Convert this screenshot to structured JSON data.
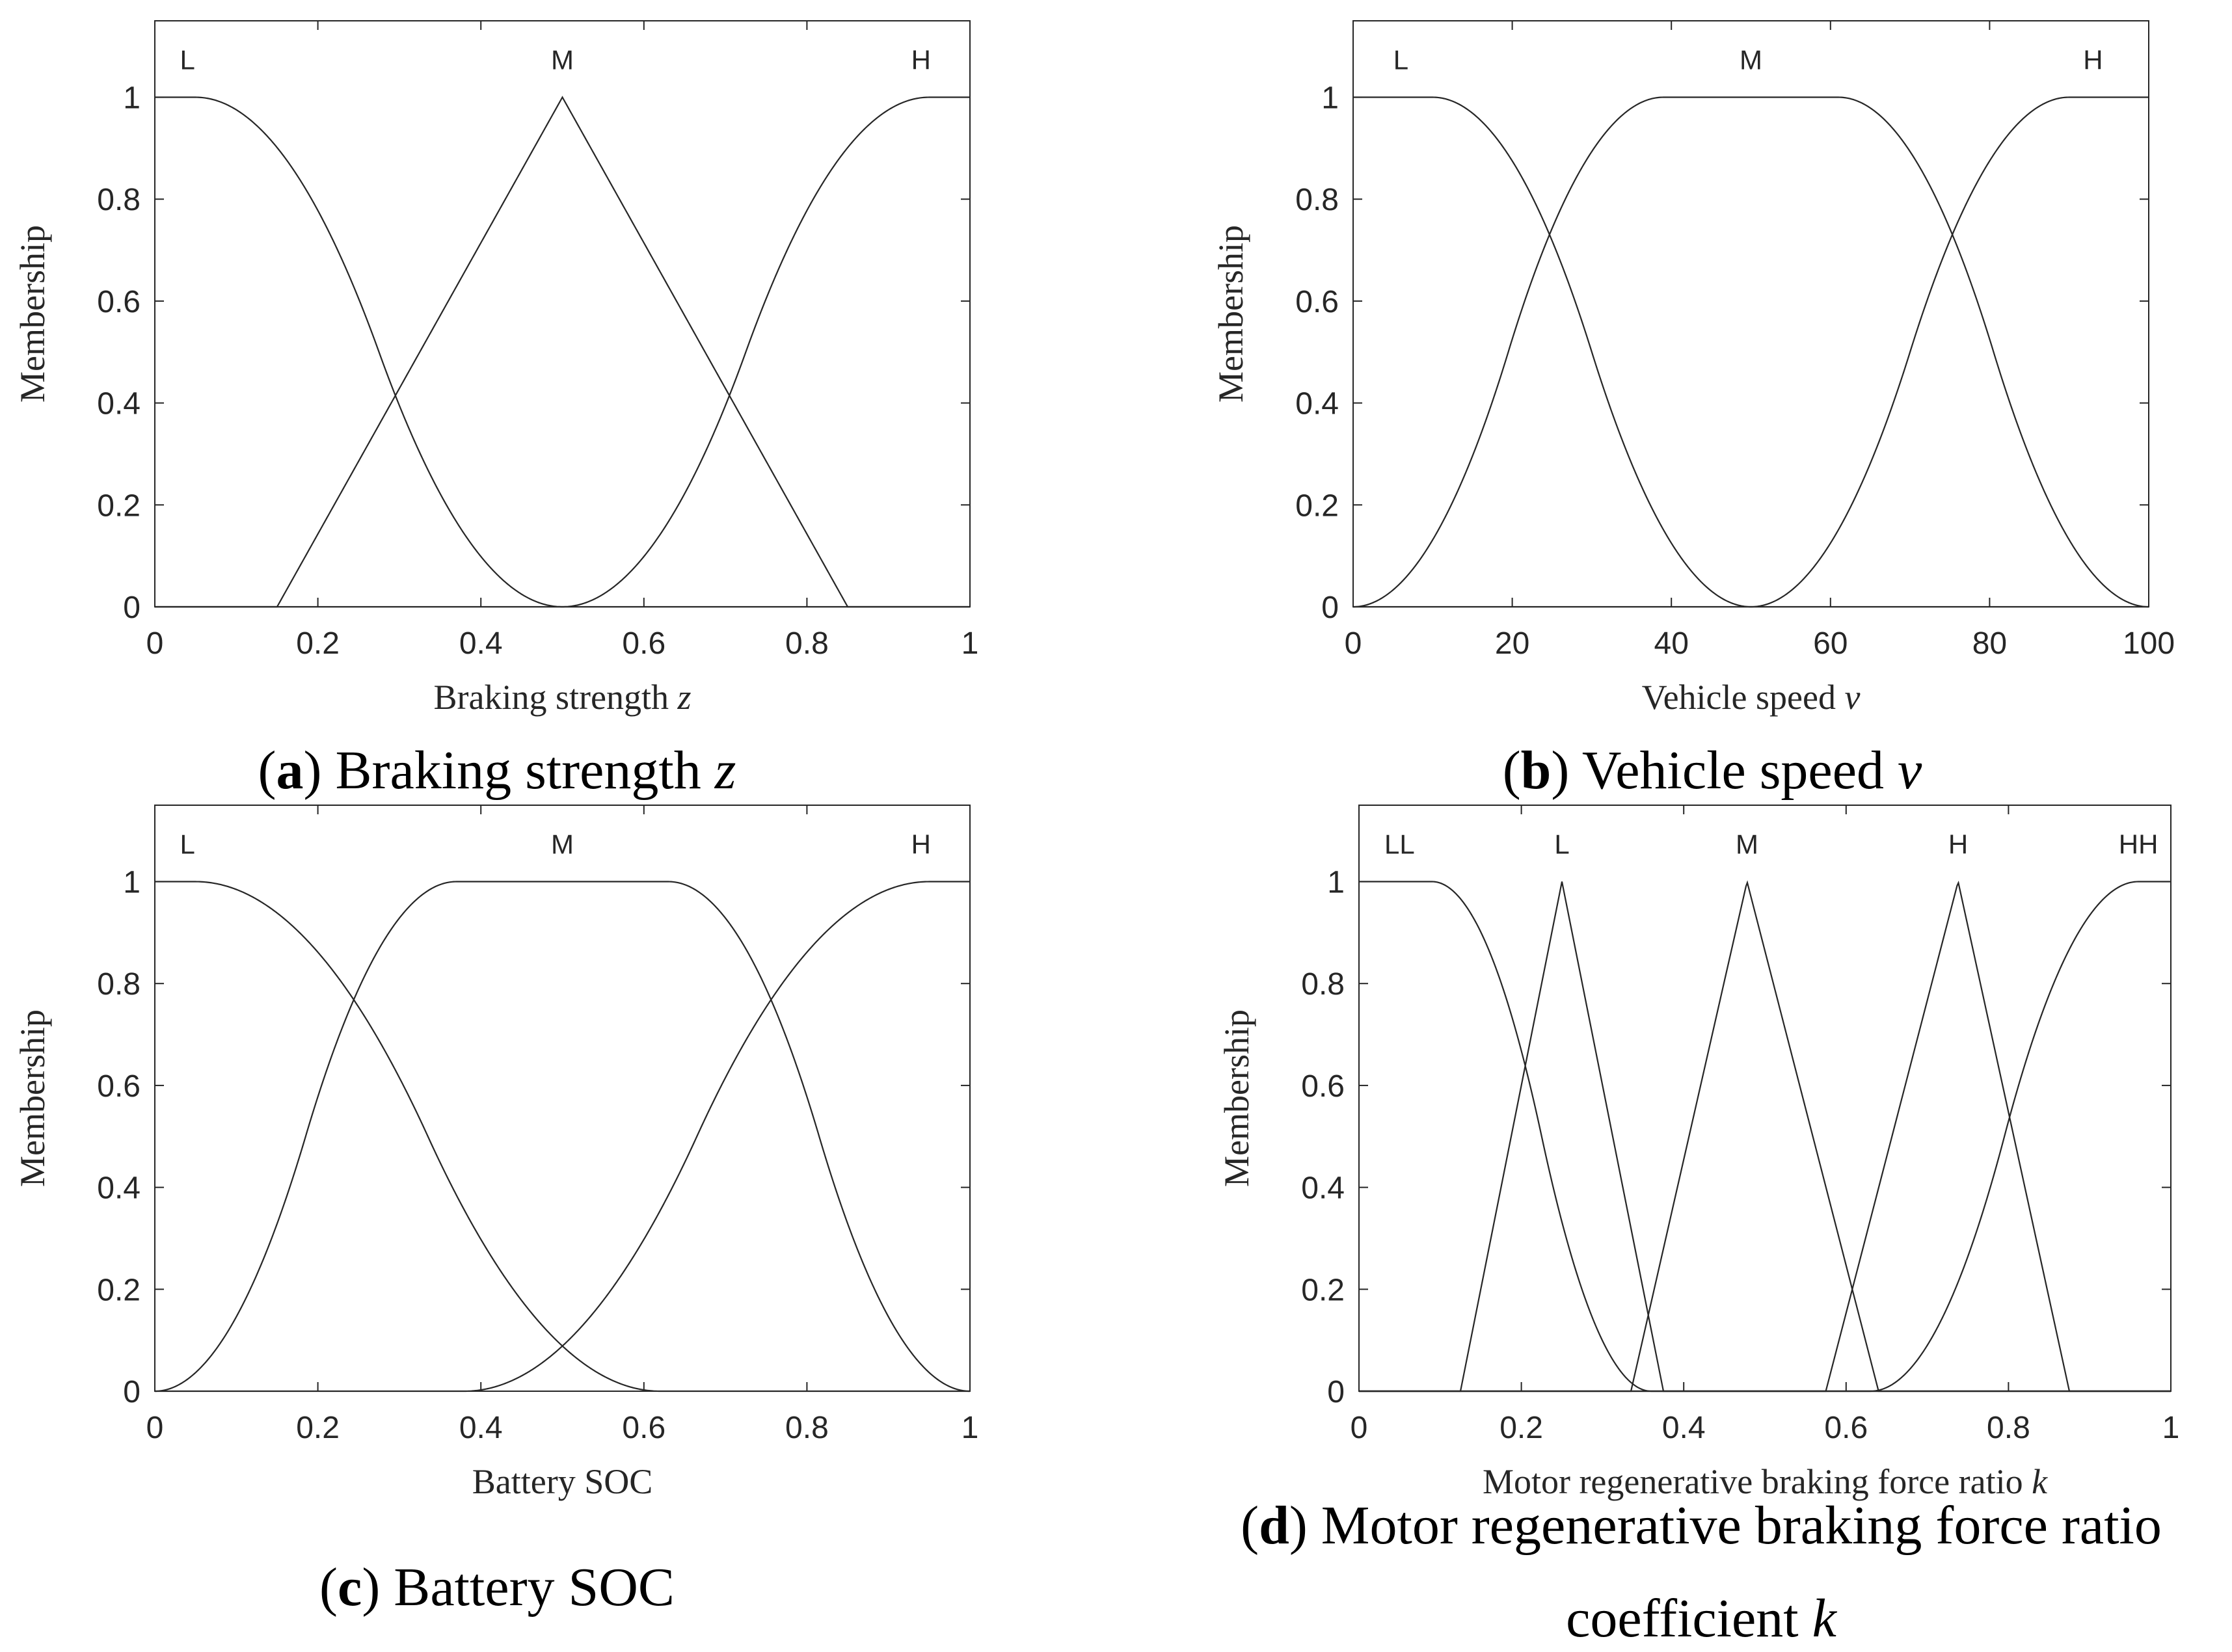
{
  "chart_data": [
    {
      "type": "line",
      "panel": "a",
      "title": "",
      "caption": {
        "letter": "a",
        "text": "Braking strength",
        "symbol": "z"
      },
      "xlabel": {
        "text": "Braking strength",
        "symbol": "z"
      },
      "ylabel": "Membership",
      "xlim": [
        0,
        1
      ],
      "ylim": [
        0,
        1.15
      ],
      "xticks": [
        0,
        0.2,
        0.4,
        0.6,
        0.8,
        1
      ],
      "xtick_labels": [
        "0",
        "0.2",
        "0.4",
        "0.6",
        "0.8",
        "1"
      ],
      "yticks": [
        0,
        0.2,
        0.4,
        0.6,
        0.8,
        1
      ],
      "ytick_labels": [
        "0",
        "0.2",
        "0.4",
        "0.6",
        "0.8",
        "1"
      ],
      "grid": false,
      "series": [
        {
          "name": "L",
          "label_x": 0.04,
          "mf": "zmf",
          "params": [
            0.05,
            0.5
          ]
        },
        {
          "name": "M",
          "label_x": 0.5,
          "mf": "trimf",
          "params": [
            0.15,
            0.5,
            0.85
          ]
        },
        {
          "name": "H",
          "label_x": 0.94,
          "mf": "smf",
          "params": [
            0.5,
            0.95
          ]
        }
      ]
    },
    {
      "type": "line",
      "panel": "b",
      "title": "",
      "caption": {
        "letter": "b",
        "text": "Vehicle speed",
        "symbol": "v"
      },
      "xlabel": {
        "text": "Vehicle speed",
        "symbol": "v"
      },
      "ylabel": "Membership",
      "xlim": [
        0,
        100
      ],
      "ylim": [
        0,
        1.15
      ],
      "xticks": [
        0,
        20,
        40,
        60,
        80,
        100
      ],
      "xtick_labels": [
        "0",
        "20",
        "40",
        "60",
        "80",
        "100"
      ],
      "yticks": [
        0,
        0.2,
        0.4,
        0.6,
        0.8,
        1
      ],
      "ytick_labels": [
        "0",
        "0.2",
        "0.4",
        "0.6",
        "0.8",
        "1"
      ],
      "grid": false,
      "series": [
        {
          "name": "L",
          "label_x": 6,
          "mf": "zmf",
          "params": [
            10,
            50
          ]
        },
        {
          "name": "M",
          "label_x": 50,
          "mf": "pimf",
          "params": [
            0,
            39,
            61,
            100
          ]
        },
        {
          "name": "H",
          "label_x": 93,
          "mf": "smf",
          "params": [
            50,
            90
          ]
        }
      ]
    },
    {
      "type": "line",
      "panel": "c",
      "title": "",
      "caption": {
        "letter": "c",
        "text": "Battery SOC",
        "symbol": ""
      },
      "xlabel": {
        "text": "Battery SOC",
        "symbol": ""
      },
      "ylabel": "Membership",
      "xlim": [
        0,
        1
      ],
      "ylim": [
        0,
        1.15
      ],
      "xticks": [
        0,
        0.2,
        0.4,
        0.6,
        0.8,
        1
      ],
      "xtick_labels": [
        "0",
        "0.2",
        "0.4",
        "0.6",
        "0.8",
        "1"
      ],
      "yticks": [
        0,
        0.2,
        0.4,
        0.6,
        0.8,
        1
      ],
      "ytick_labels": [
        "0",
        "0.2",
        "0.4",
        "0.6",
        "0.8",
        "1"
      ],
      "grid": false,
      "series": [
        {
          "name": "L",
          "label_x": 0.04,
          "mf": "zmf",
          "params": [
            0.05,
            0.62
          ]
        },
        {
          "name": "M",
          "label_x": 0.5,
          "mf": "pimf",
          "params": [
            0,
            0.37,
            0.63,
            1
          ]
        },
        {
          "name": "H",
          "label_x": 0.94,
          "mf": "smf",
          "params": [
            0.38,
            0.95
          ]
        }
      ]
    },
    {
      "type": "line",
      "panel": "d",
      "title": "",
      "caption": {
        "letter": "d",
        "text": "Motor regenerative braking force ratio coefficient",
        "line1": "Motor regenerative braking force ratio",
        "line2": "coefficient",
        "symbol": "k"
      },
      "xlabel": {
        "text": "Motor regenerative braking force ratio",
        "symbol": "k"
      },
      "ylabel": "Membership",
      "xlim": [
        0,
        1
      ],
      "ylim": [
        0,
        1.15
      ],
      "xticks": [
        0,
        0.2,
        0.4,
        0.6,
        0.8,
        1
      ],
      "xtick_labels": [
        "0",
        "0.2",
        "0.4",
        "0.6",
        "0.8",
        "1"
      ],
      "yticks": [
        0,
        0.2,
        0.4,
        0.6,
        0.8,
        1
      ],
      "ytick_labels": [
        "0",
        "0.2",
        "0.4",
        "0.6",
        "0.8",
        "1"
      ],
      "grid": false,
      "series": [
        {
          "name": "LL",
          "label_x": 0.05,
          "mf": "zmf",
          "params": [
            0.09,
            0.36
          ]
        },
        {
          "name": "L",
          "label_x": 0.25,
          "mf": "trimf",
          "params": [
            0.125,
            0.25,
            0.375
          ]
        },
        {
          "name": "M",
          "label_x": 0.478,
          "mf": "trimf",
          "params": [
            0.335,
            0.478,
            0.64
          ]
        },
        {
          "name": "H",
          "label_x": 0.738,
          "mf": "trimf",
          "params": [
            0.575,
            0.738,
            0.875
          ]
        },
        {
          "name": "HH",
          "label_x": 0.96,
          "mf": "smf",
          "params": [
            0.63,
            0.96
          ]
        }
      ]
    }
  ]
}
